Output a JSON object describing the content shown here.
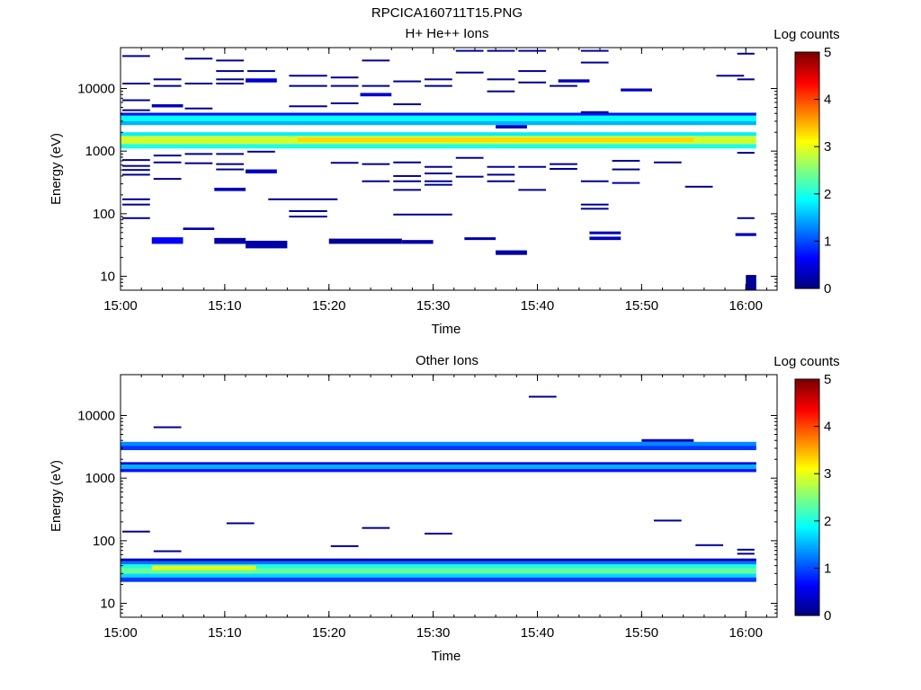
{
  "page_title": "RPCICA160711T15.PNG",
  "colorbar_labels": [
    "0",
    "1",
    "2",
    "3",
    "4",
    "5"
  ],
  "time_ticks": [
    "15:00",
    "15:10",
    "15:20",
    "15:30",
    "15:40",
    "15:50",
    "16:00"
  ],
  "energy_ticks": [
    "10",
    "100",
    "1000",
    "10000"
  ],
  "chart_data": [
    {
      "type": "heatmap",
      "title": "H+ He++ Ions",
      "xlabel": "Time",
      "ylabel": "Energy (eV)",
      "colorbar_title": "Log counts",
      "colorbar_range": [
        0,
        5
      ],
      "y_scale": "log",
      "ylim": [
        6,
        45000
      ],
      "xlim": [
        "15:00",
        "16:03"
      ],
      "grid": false,
      "bands": [
        {
          "t0": "15:00",
          "t1": "16:01",
          "emin": 1100,
          "emax": 1300,
          "log_counts": 2.0
        },
        {
          "t0": "15:00",
          "t1": "16:01",
          "emin": 1300,
          "emax": 1750,
          "log_counts": 2.9
        },
        {
          "t0": "15:00",
          "t1": "16:01",
          "emin": 1750,
          "emax": 2000,
          "log_counts": 1.8
        },
        {
          "t0": "15:00",
          "t1": "16:01",
          "emin": 2600,
          "emax": 3000,
          "log_counts": 1.5
        },
        {
          "t0": "15:00",
          "t1": "16:01",
          "emin": 3000,
          "emax": 3700,
          "log_counts": 1.9
        },
        {
          "t0": "15:00",
          "t1": "16:01",
          "emin": 3700,
          "emax": 4100,
          "log_counts": 0.7
        },
        {
          "t0": "15:17",
          "t1": "15:55",
          "emin": 1400,
          "emax": 1650,
          "log_counts": 3.3
        },
        {
          "t0": "16:00",
          "t1": "16:01",
          "emin": 6,
          "emax": 10.5,
          "log_counts": 0.1
        },
        {
          "t0": "15:20",
          "t1": "15:27",
          "emin": 33,
          "emax": 40,
          "log_counts": 0.1
        },
        {
          "t0": "15:12",
          "t1": "15:16",
          "emin": 28,
          "emax": 37,
          "log_counts": 0.2
        },
        {
          "t0": "15:03",
          "t1": "15:06",
          "emin": 33,
          "emax": 42,
          "log_counts": 0.6
        },
        {
          "t0": "15:09",
          "t1": "15:12",
          "emin": 33,
          "emax": 41,
          "log_counts": 0.2
        },
        {
          "t0": "15:27",
          "t1": "15:30",
          "emin": 33,
          "emax": 38,
          "log_counts": 0.2
        },
        {
          "t0": "15:36",
          "t1": "15:39",
          "emin": 22,
          "emax": 26,
          "log_counts": 0.2
        },
        {
          "t0": "15:45",
          "t1": "15:48",
          "emin": 38,
          "emax": 43,
          "log_counts": 0.3
        },
        {
          "t0": "15:45",
          "t1": "15:48",
          "emin": 47,
          "emax": 52,
          "log_counts": 0.3
        },
        {
          "t0": "15:59",
          "t1": "16:01",
          "emin": 44,
          "emax": 49,
          "log_counts": 0.3
        },
        {
          "t0": "15:33",
          "t1": "15:36",
          "emin": 38,
          "emax": 42,
          "log_counts": 0.2
        },
        {
          "t0": "15:06",
          "t1": "15:09",
          "emin": 55,
          "emax": 60,
          "log_counts": 0.2
        },
        {
          "t0": "15:09",
          "t1": "15:12",
          "emin": 230,
          "emax": 260,
          "log_counts": 0.3
        },
        {
          "t0": "15:12",
          "t1": "15:15",
          "emin": 440,
          "emax": 510,
          "log_counts": 0.3
        },
        {
          "t0": "15:12",
          "t1": "15:15",
          "emin": 12500,
          "emax": 14500,
          "log_counts": 0.4
        },
        {
          "t0": "15:23",
          "t1": "15:26",
          "emin": 7500,
          "emax": 8500,
          "log_counts": 0.4
        },
        {
          "t0": "15:42",
          "t1": "15:45",
          "emin": 12500,
          "emax": 14000,
          "log_counts": 0.3
        },
        {
          "t0": "15:48",
          "t1": "15:51",
          "emin": 9000,
          "emax": 10000,
          "log_counts": 0.3
        },
        {
          "t0": "15:03",
          "t1": "15:06",
          "emin": 5000,
          "emax": 5600,
          "log_counts": 0.3
        },
        {
          "t0": "15:36",
          "t1": "15:39",
          "emin": 2300,
          "emax": 2600,
          "log_counts": 0.3
        }
      ],
      "lines": [
        {
          "t0": "15:00",
          "t1": "15:03",
          "energy": 33000
        },
        {
          "t0": "15:00",
          "t1": "15:03",
          "energy": 12000
        },
        {
          "t0": "15:00",
          "t1": "15:03",
          "energy": 6500
        },
        {
          "t0": "15:00",
          "t1": "15:03",
          "energy": 4500
        },
        {
          "t0": "15:00",
          "t1": "15:03",
          "energy": 720
        },
        {
          "t0": "15:00",
          "t1": "15:03",
          "energy": 580
        },
        {
          "t0": "15:00",
          "t1": "15:03",
          "energy": 500
        },
        {
          "t0": "15:00",
          "t1": "15:03",
          "energy": 420
        },
        {
          "t0": "15:00",
          "t1": "15:03",
          "energy": 170
        },
        {
          "t0": "15:00",
          "t1": "15:03",
          "energy": 140
        },
        {
          "t0": "15:00",
          "t1": "15:03",
          "energy": 85
        },
        {
          "t0": "15:03",
          "t1": "15:06",
          "energy": 14000
        },
        {
          "t0": "15:03",
          "t1": "15:06",
          "energy": 11000
        },
        {
          "t0": "15:03",
          "t1": "15:06",
          "energy": 850
        },
        {
          "t0": "15:03",
          "t1": "15:06",
          "energy": 660
        },
        {
          "t0": "15:03",
          "t1": "15:06",
          "energy": 360
        },
        {
          "t0": "15:06",
          "t1": "15:09",
          "energy": 30000
        },
        {
          "t0": "15:06",
          "t1": "15:09",
          "energy": 12000
        },
        {
          "t0": "15:06",
          "t1": "15:09",
          "energy": 4800
        },
        {
          "t0": "15:06",
          "t1": "15:09",
          "energy": 900
        },
        {
          "t0": "15:06",
          "t1": "15:09",
          "energy": 640
        },
        {
          "t0": "15:09",
          "t1": "15:12",
          "energy": 28000
        },
        {
          "t0": "15:09",
          "t1": "15:12",
          "energy": 19000
        },
        {
          "t0": "15:09",
          "t1": "15:12",
          "energy": 14000
        },
        {
          "t0": "15:09",
          "t1": "15:12",
          "energy": 12000
        },
        {
          "t0": "15:09",
          "t1": "15:12",
          "energy": 900
        },
        {
          "t0": "15:09",
          "t1": "15:12",
          "energy": 620
        },
        {
          "t0": "15:09",
          "t1": "15:12",
          "energy": 510
        },
        {
          "t0": "15:12",
          "t1": "15:15",
          "energy": 19000
        },
        {
          "t0": "15:12",
          "t1": "15:15",
          "energy": 980
        },
        {
          "t0": "15:14",
          "t1": "15:21",
          "energy": 170
        },
        {
          "t0": "15:16",
          "t1": "15:20",
          "energy": 16000
        },
        {
          "t0": "15:16",
          "t1": "15:20",
          "energy": 11000
        },
        {
          "t0": "15:16",
          "t1": "15:20",
          "energy": 5200
        },
        {
          "t0": "15:16",
          "t1": "15:20",
          "energy": 110
        },
        {
          "t0": "15:16",
          "t1": "15:20",
          "energy": 90
        },
        {
          "t0": "15:20",
          "t1": "15:23",
          "energy": 15000
        },
        {
          "t0": "15:20",
          "t1": "15:23",
          "energy": 11000
        },
        {
          "t0": "15:20",
          "t1": "15:23",
          "energy": 5800
        },
        {
          "t0": "15:20",
          "t1": "15:23",
          "energy": 650
        },
        {
          "t0": "15:23",
          "t1": "15:26",
          "energy": 28000
        },
        {
          "t0": "15:23",
          "t1": "15:26",
          "energy": 11000
        },
        {
          "t0": "15:23",
          "t1": "15:26",
          "energy": 620
        },
        {
          "t0": "15:23",
          "t1": "15:26",
          "energy": 330
        },
        {
          "t0": "15:26",
          "t1": "15:29",
          "energy": 13000
        },
        {
          "t0": "15:26",
          "t1": "15:29",
          "energy": 5600
        },
        {
          "t0": "15:26",
          "t1": "15:29",
          "energy": 660
        },
        {
          "t0": "15:26",
          "t1": "15:29",
          "energy": 400
        },
        {
          "t0": "15:26",
          "t1": "15:29",
          "energy": 330
        },
        {
          "t0": "15:26",
          "t1": "15:29",
          "energy": 240
        },
        {
          "t0": "15:26",
          "t1": "15:32",
          "energy": 97
        },
        {
          "t0": "15:29",
          "t1": "15:32",
          "energy": 14000
        },
        {
          "t0": "15:29",
          "t1": "15:32",
          "energy": 11000
        },
        {
          "t0": "15:29",
          "t1": "15:32",
          "energy": 560
        },
        {
          "t0": "15:29",
          "t1": "15:32",
          "energy": 440
        },
        {
          "t0": "15:29",
          "t1": "15:32",
          "energy": 330
        },
        {
          "t0": "15:29",
          "t1": "15:32",
          "energy": 290
        },
        {
          "t0": "15:32",
          "t1": "15:35",
          "energy": 40000
        },
        {
          "t0": "15:32",
          "t1": "15:35",
          "energy": 18000
        },
        {
          "t0": "15:32",
          "t1": "15:35",
          "energy": 780
        },
        {
          "t0": "15:32",
          "t1": "15:35",
          "energy": 390
        },
        {
          "t0": "15:35",
          "t1": "15:38",
          "energy": 40000
        },
        {
          "t0": "15:35",
          "t1": "15:38",
          "energy": 14000
        },
        {
          "t0": "15:35",
          "t1": "15:38",
          "energy": 9000
        },
        {
          "t0": "15:35",
          "t1": "15:38",
          "energy": 560
        },
        {
          "t0": "15:35",
          "t1": "15:38",
          "energy": 420
        },
        {
          "t0": "15:35",
          "t1": "15:38",
          "energy": 330
        },
        {
          "t0": "15:38",
          "t1": "15:41",
          "energy": 40000
        },
        {
          "t0": "15:38",
          "t1": "15:41",
          "energy": 19000
        },
        {
          "t0": "15:38",
          "t1": "15:41",
          "energy": 12500
        },
        {
          "t0": "15:38",
          "t1": "15:41",
          "energy": 560
        },
        {
          "t0": "15:38",
          "t1": "15:41",
          "energy": 240
        },
        {
          "t0": "15:41",
          "t1": "15:44",
          "energy": 11000
        },
        {
          "t0": "15:41",
          "t1": "15:44",
          "energy": 620
        },
        {
          "t0": "15:41",
          "t1": "15:44",
          "energy": 520
        },
        {
          "t0": "15:44",
          "t1": "15:47",
          "energy": 40000
        },
        {
          "t0": "15:44",
          "t1": "15:47",
          "energy": 26000
        },
        {
          "t0": "15:44",
          "t1": "15:47",
          "energy": 4200
        },
        {
          "t0": "15:44",
          "t1": "15:47",
          "energy": 330
        },
        {
          "t0": "15:44",
          "t1": "15:47",
          "energy": 140
        },
        {
          "t0": "15:44",
          "t1": "15:47",
          "energy": 120
        },
        {
          "t0": "15:47",
          "t1": "15:50",
          "energy": 700
        },
        {
          "t0": "15:47",
          "t1": "15:50",
          "energy": 510
        },
        {
          "t0": "15:47",
          "t1": "15:50",
          "energy": 310
        },
        {
          "t0": "15:51",
          "t1": "15:54",
          "energy": 660
        },
        {
          "t0": "15:54",
          "t1": "15:57",
          "energy": 270
        },
        {
          "t0": "15:57",
          "t1": "16:00",
          "energy": 16000
        },
        {
          "t0": "15:59",
          "t1": "16:01",
          "energy": 36000
        },
        {
          "t0": "15:59",
          "t1": "16:01",
          "energy": 14000
        },
        {
          "t0": "15:59",
          "t1": "16:01",
          "energy": 940
        },
        {
          "t0": "15:59",
          "t1": "16:01",
          "energy": 85
        }
      ]
    },
    {
      "type": "heatmap",
      "title": "Other Ions",
      "xlabel": "Time",
      "ylabel": "Energy (eV)",
      "colorbar_title": "Log counts",
      "colorbar_range": [
        0,
        5
      ],
      "y_scale": "log",
      "ylim": [
        6,
        45000
      ],
      "xlim": [
        "15:00",
        "16:03"
      ],
      "grid": false,
      "bands": [
        {
          "t0": "15:00",
          "t1": "16:01",
          "emin": 22,
          "emax": 26,
          "log_counts": 0.9
        },
        {
          "t0": "15:00",
          "t1": "16:01",
          "emin": 26,
          "emax": 30,
          "log_counts": 1.7
        },
        {
          "t0": "15:00",
          "t1": "16:01",
          "emin": 30,
          "emax": 36,
          "log_counts": 2.4
        },
        {
          "t0": "15:00",
          "t1": "16:01",
          "emin": 36,
          "emax": 42,
          "log_counts": 2.0
        },
        {
          "t0": "15:00",
          "t1": "16:01",
          "emin": 42,
          "emax": 47,
          "log_counts": 1.2
        },
        {
          "t0": "15:00",
          "t1": "16:01",
          "emin": 47,
          "emax": 52,
          "log_counts": 0.3
        },
        {
          "t0": "15:03",
          "t1": "15:13",
          "emin": 34,
          "emax": 40,
          "log_counts": 3.0
        },
        {
          "t0": "15:00",
          "t1": "16:01",
          "emin": 1250,
          "emax": 1400,
          "log_counts": 0.7
        },
        {
          "t0": "15:00",
          "t1": "16:01",
          "emin": 1400,
          "emax": 1650,
          "log_counts": 1.5
        },
        {
          "t0": "15:00",
          "t1": "16:01",
          "emin": 1650,
          "emax": 1800,
          "log_counts": 0.4
        },
        {
          "t0": "15:00",
          "t1": "16:01",
          "emin": 2800,
          "emax": 3300,
          "log_counts": 0.9
        },
        {
          "t0": "15:00",
          "t1": "16:01",
          "emin": 3300,
          "emax": 3800,
          "log_counts": 1.3
        },
        {
          "t0": "15:50",
          "t1": "15:55",
          "emin": 3800,
          "emax": 4200,
          "log_counts": 0.3
        }
      ],
      "lines": [
        {
          "t0": "15:00",
          "t1": "15:03",
          "energy": 140
        },
        {
          "t0": "15:03",
          "t1": "15:06",
          "energy": 6500
        },
        {
          "t0": "15:03",
          "t1": "15:06",
          "energy": 68
        },
        {
          "t0": "15:10",
          "t1": "15:13",
          "energy": 190
        },
        {
          "t0": "15:20",
          "t1": "15:23",
          "energy": 82
        },
        {
          "t0": "15:23",
          "t1": "15:26",
          "energy": 160
        },
        {
          "t0": "15:29",
          "t1": "15:32",
          "energy": 130
        },
        {
          "t0": "15:39",
          "t1": "15:42",
          "energy": 20000
        },
        {
          "t0": "15:51",
          "t1": "15:54",
          "energy": 210
        },
        {
          "t0": "15:55",
          "t1": "15:58",
          "energy": 85
        },
        {
          "t0": "15:59",
          "t1": "16:01",
          "energy": 72
        },
        {
          "t0": "15:59",
          "t1": "16:01",
          "energy": 62
        }
      ]
    }
  ]
}
